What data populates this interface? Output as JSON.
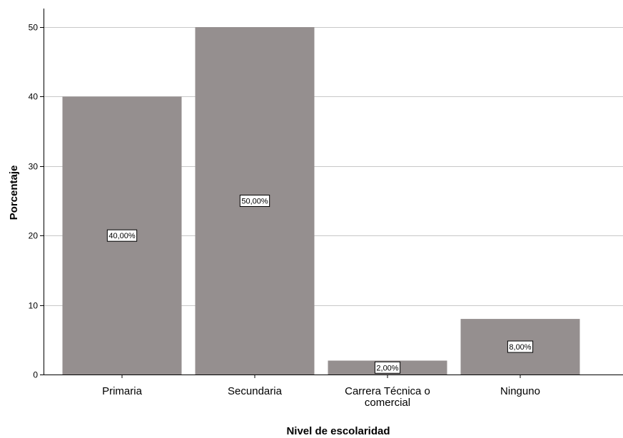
{
  "chart_data": {
    "type": "bar",
    "categories": [
      "Primaria",
      "Secundaria",
      "Carrera Técnica o comercial",
      "Ninguno"
    ],
    "category_lines": [
      [
        "Primaria"
      ],
      [
        "Secundaria"
      ],
      [
        "Carrera Técnica o",
        "comercial"
      ],
      [
        "Ninguno"
      ]
    ],
    "values": [
      40,
      50,
      2,
      8
    ],
    "data_labels": [
      "40,00%",
      "50,00%",
      "2,00%",
      "8,00%"
    ],
    "xlabel": "Nivel de escolaridad",
    "ylabel": "Porcentaje",
    "ylim": [
      0,
      50
    ],
    "yticks": [
      0,
      10,
      20,
      30,
      40,
      50
    ],
    "ytick_labels": [
      "0",
      "10",
      "20",
      "30",
      "40",
      "50"
    ],
    "grid": true,
    "bar_color": "#958f8f",
    "gridline_color": "#c8c8c8"
  }
}
